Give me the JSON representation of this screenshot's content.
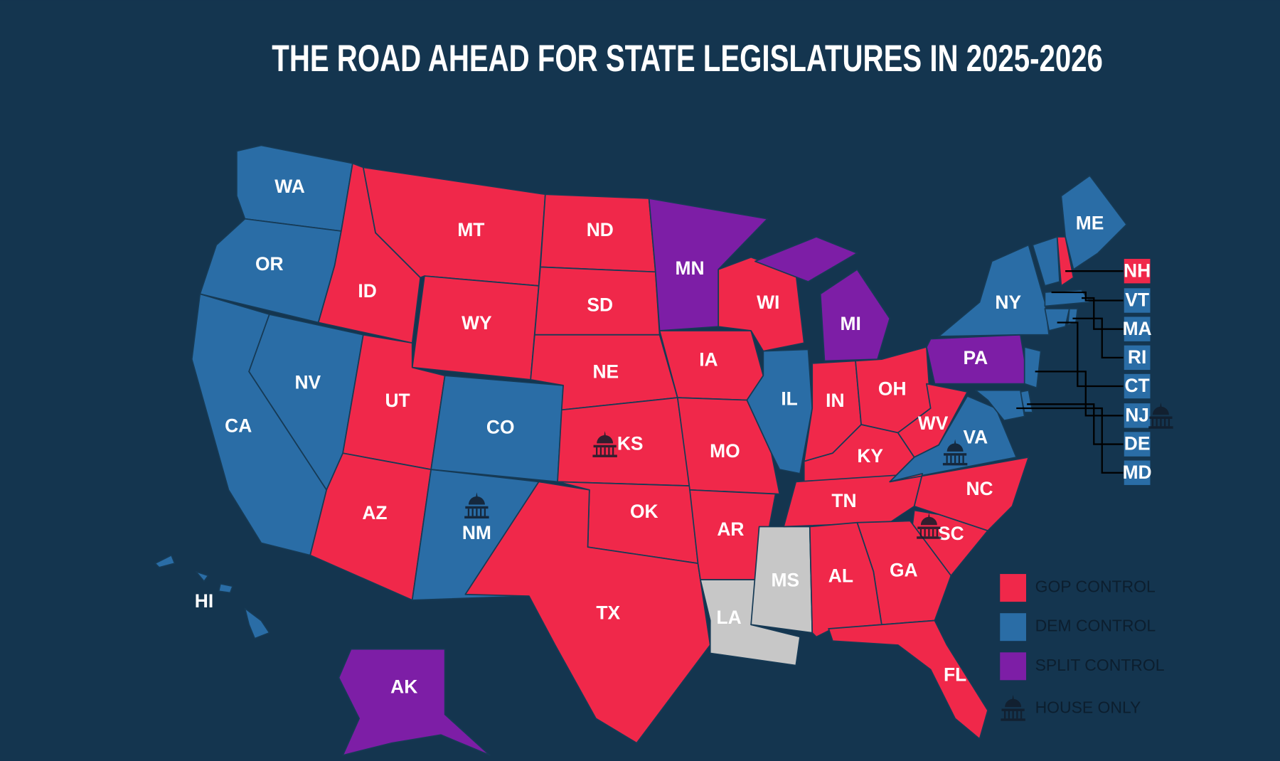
{
  "title": "THE ROAD AHEAD FOR STATE LEGISLATURES IN 2025-2026",
  "states": [
    {
      "label": "WA",
      "color": "#2a6da6"
    },
    {
      "label": "OR",
      "color": "#2a6da6"
    },
    {
      "label": "CA",
      "color": "#2a6da6"
    },
    {
      "label": "NV",
      "color": "#2a6da6"
    },
    {
      "label": "ID",
      "color": "#f0284a"
    },
    {
      "label": "MT",
      "color": "#f0284a"
    },
    {
      "label": "WY",
      "color": "#f0284a"
    },
    {
      "label": "UT",
      "color": "#f0284a"
    },
    {
      "label": "CO",
      "color": "#2a6da6"
    },
    {
      "label": "AZ",
      "color": "#f0284a"
    },
    {
      "label": "NM",
      "color": "#2a6da6",
      "house_only": true
    },
    {
      "label": "ND",
      "color": "#f0284a"
    },
    {
      "label": "SD",
      "color": "#f0284a"
    },
    {
      "label": "NE",
      "color": "#f0284a"
    },
    {
      "label": "KS",
      "color": "#f0284a",
      "house_only": true
    },
    {
      "label": "OK",
      "color": "#f0284a"
    },
    {
      "label": "TX",
      "color": "#f0284a"
    },
    {
      "label": "MN",
      "color": "#7d1ea6"
    },
    {
      "label": "IA",
      "color": "#f0284a"
    },
    {
      "label": "MO",
      "color": "#f0284a"
    },
    {
      "label": "AR",
      "color": "#f0284a"
    },
    {
      "label": "LA",
      "color": "#c7c7c7"
    },
    {
      "label": "MS",
      "color": "#c7c7c7"
    },
    {
      "label": "WI",
      "color": "#f0284a"
    },
    {
      "label": "IL",
      "color": "#2a6da6"
    },
    {
      "label": "MI",
      "color": "#7d1ea6"
    },
    {
      "label": "IN",
      "color": "#f0284a"
    },
    {
      "label": "OH",
      "color": "#f0284a"
    },
    {
      "label": "KY",
      "color": "#f0284a"
    },
    {
      "label": "TN",
      "color": "#f0284a"
    },
    {
      "label": "WV",
      "color": "#f0284a"
    },
    {
      "label": "VA",
      "color": "#2a6da6",
      "house_only": true
    },
    {
      "label": "NC",
      "color": "#f0284a"
    },
    {
      "label": "SC",
      "color": "#f0284a",
      "house_only": true
    },
    {
      "label": "GA",
      "color": "#f0284a"
    },
    {
      "label": "AL",
      "color": "#f0284a"
    },
    {
      "label": "FL",
      "color": "#f0284a"
    },
    {
      "label": "PA",
      "color": "#7d1ea6"
    },
    {
      "label": "NY",
      "color": "#2a6da6"
    },
    {
      "label": "ME",
      "color": "#2a6da6"
    },
    {
      "label": "NH",
      "color": "#f0284a"
    },
    {
      "label": "VT",
      "color": "#2a6da6"
    },
    {
      "label": "MA",
      "color": "#2a6da6"
    },
    {
      "label": "RI",
      "color": "#2a6da6"
    },
    {
      "label": "CT",
      "color": "#2a6da6"
    },
    {
      "label": "NJ",
      "color": "#2a6da6",
      "house_only": true
    },
    {
      "label": "DE",
      "color": "#2a6da6"
    },
    {
      "label": "MD",
      "color": "#2a6da6"
    },
    {
      "label": "AK",
      "color": "#7d1ea6"
    },
    {
      "label": "HI",
      "color": "#2a6da6"
    }
  ],
  "legend": {
    "items": [
      {
        "label": "GOP CONTROL",
        "color": "#f0284a"
      },
      {
        "label": "DEM CONTROL",
        "color": "#2a6da6"
      },
      {
        "label": "SPLIT CONTROL",
        "color": "#7d1ea6"
      }
    ],
    "house_only": "HOUSE ONLY"
  }
}
